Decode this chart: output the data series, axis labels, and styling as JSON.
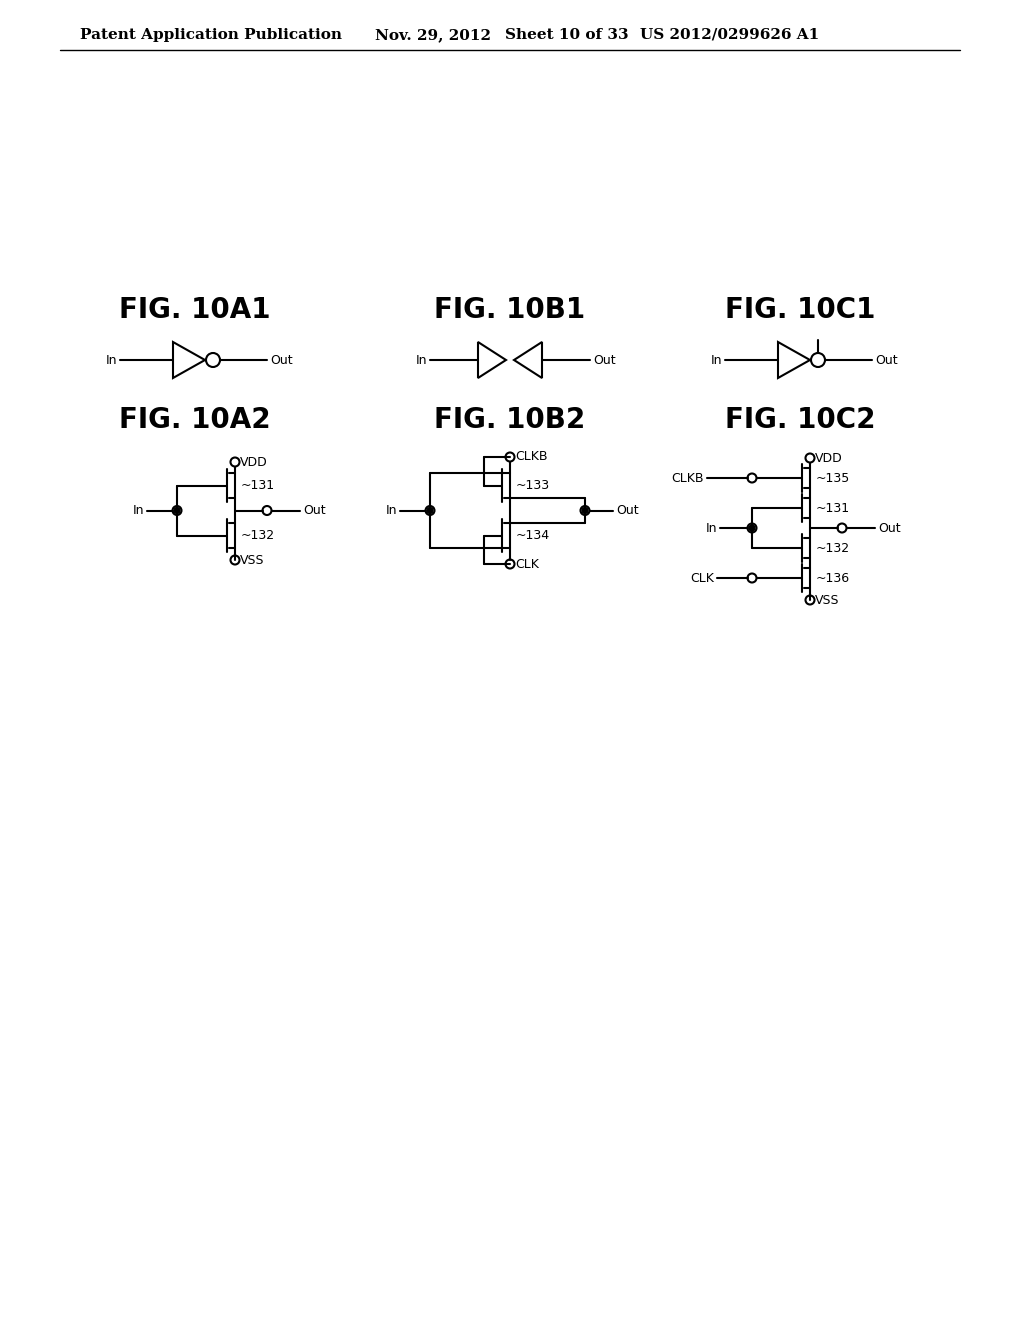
{
  "bg_color": "#ffffff",
  "header_text": "Patent Application Publication",
  "header_date": "Nov. 29, 2012",
  "header_sheet": "Sheet 10 of 33",
  "header_patent": "US 2012/0299626 A1",
  "lw": 1.5,
  "font_size_header": 11,
  "font_size_fig": 20,
  "font_size_label": 9,
  "font_size_num": 9
}
